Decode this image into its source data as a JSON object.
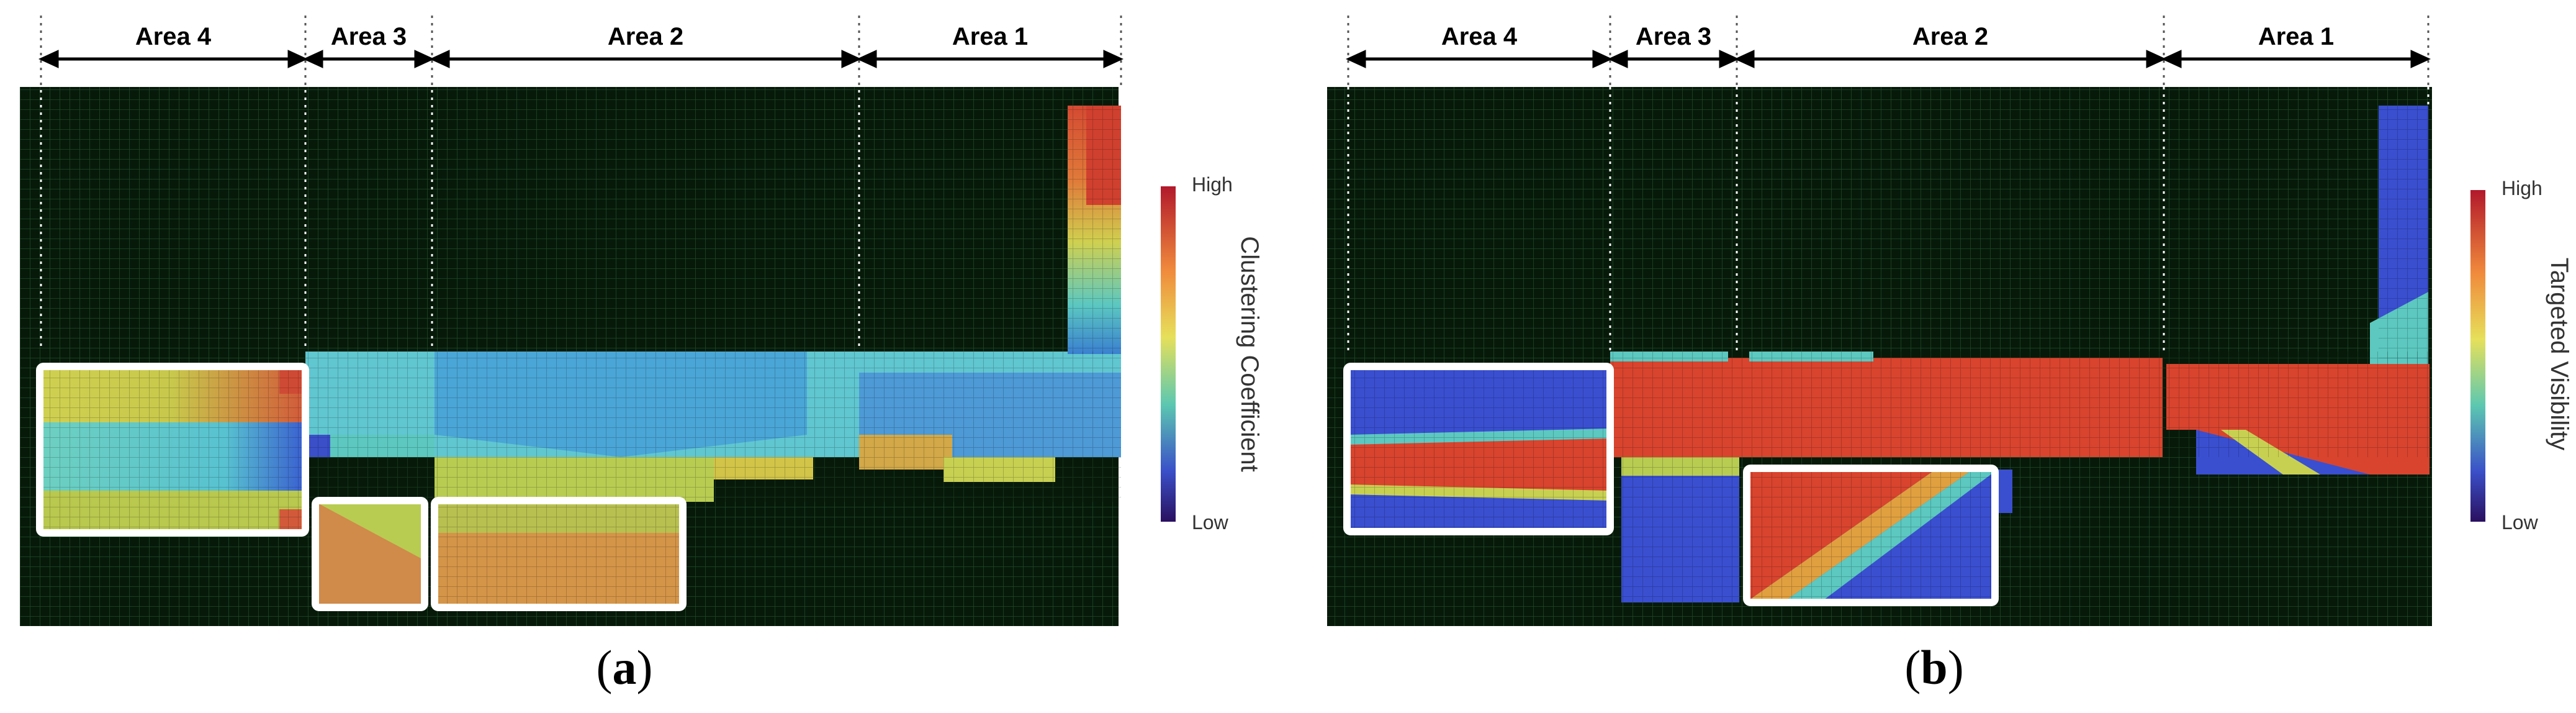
{
  "panels": [
    {
      "id": "a",
      "caption": "(a)",
      "colorbar_title": "Clustering Coefficient",
      "colorbar_high": "High",
      "colorbar_low": "Low",
      "areas": [
        "Area 4",
        "Area 3",
        "Area 2",
        "Area 1"
      ]
    },
    {
      "id": "b",
      "caption": "(b)",
      "colorbar_title": "Targeted Visibility",
      "colorbar_high": "High",
      "colorbar_low": "Low",
      "areas": [
        "Area 4",
        "Area 3",
        "Area 2",
        "Area 1"
      ]
    }
  ],
  "colors": {
    "background": "#071a0a",
    "grid_line": "#1f4a28",
    "highlight_box": "#ffffff",
    "high": "#b2182b",
    "low": "#2a1060"
  }
}
